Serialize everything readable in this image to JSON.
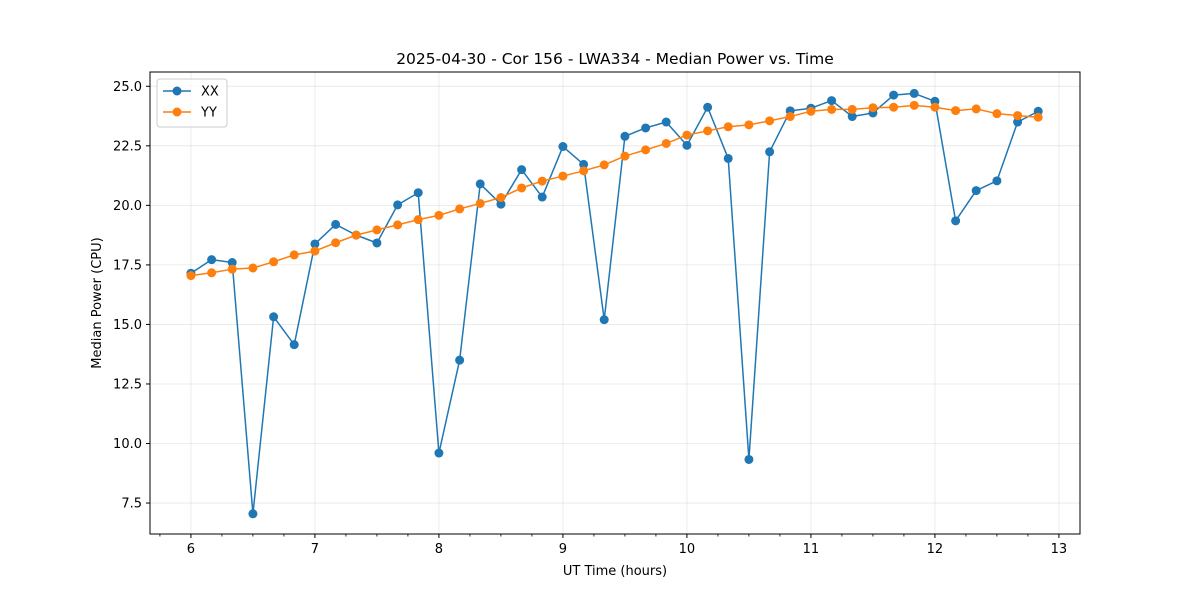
{
  "chart_data": {
    "type": "line",
    "title": "2025-04-30 - Cor 156 - LWA334 - Median Power vs. Time",
    "xlabel": "UT Time (hours)",
    "ylabel": "Median Power (CPU)",
    "xlim": [
      5.67,
      13.17
    ],
    "ylim": [
      6.2,
      25.6
    ],
    "xticks": [
      6,
      7,
      8,
      9,
      10,
      11,
      12,
      13
    ],
    "xtick_labels": [
      "6",
      "7",
      "8",
      "9",
      "10",
      "11",
      "12",
      "13"
    ],
    "xminor_step": 0.25,
    "yticks": [
      7.5,
      10.0,
      12.5,
      15.0,
      17.5,
      20.0,
      22.5,
      25.0
    ],
    "ytick_labels": [
      "7.5",
      "10.0",
      "12.5",
      "15.0",
      "17.5",
      "20.0",
      "22.5",
      "25.0"
    ],
    "grid": true,
    "legend_position": "top-left",
    "x": [
      6.0,
      6.167,
      6.333,
      6.5,
      6.667,
      6.833,
      7.0,
      7.167,
      7.333,
      7.5,
      7.667,
      7.833,
      8.0,
      8.167,
      8.333,
      8.5,
      8.667,
      8.833,
      9.0,
      9.167,
      9.333,
      9.5,
      9.667,
      9.833,
      10.0,
      10.167,
      10.333,
      10.5,
      10.667,
      10.833,
      11.0,
      11.167,
      11.333,
      11.5,
      11.667,
      11.833,
      12.0,
      12.167,
      12.333,
      12.5,
      12.667,
      12.833
    ],
    "series": [
      {
        "name": "XX",
        "color": "#1f77b4",
        "values": [
          17.15,
          17.72,
          17.6,
          7.05,
          15.32,
          14.15,
          18.38,
          19.2,
          18.75,
          18.42,
          20.02,
          20.53,
          9.6,
          13.5,
          20.9,
          20.05,
          21.5,
          20.35,
          22.47,
          21.72,
          15.2,
          22.9,
          23.25,
          23.5,
          22.52,
          24.12,
          21.97,
          9.33,
          22.25,
          23.97,
          24.08,
          24.4,
          23.73,
          23.88,
          24.63,
          24.7,
          24.37,
          19.35,
          20.62,
          21.03,
          23.5,
          23.95
        ]
      },
      {
        "name": "YY",
        "color": "#ff7f0e",
        "values": [
          17.05,
          17.17,
          17.32,
          17.37,
          17.63,
          17.92,
          18.08,
          18.43,
          18.75,
          18.97,
          19.18,
          19.4,
          19.58,
          19.85,
          20.08,
          20.33,
          20.73,
          21.02,
          21.23,
          21.45,
          21.7,
          22.07,
          22.33,
          22.6,
          22.95,
          23.13,
          23.3,
          23.38,
          23.55,
          23.73,
          23.95,
          24.03,
          24.03,
          24.1,
          24.12,
          24.2,
          24.12,
          23.98,
          24.05,
          23.85,
          23.77,
          23.7
        ]
      }
    ]
  }
}
